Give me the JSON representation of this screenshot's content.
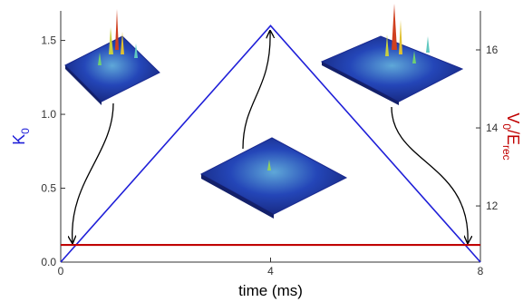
{
  "chart_data": {
    "type": "line",
    "xlabel": "time (ms)",
    "ylabel": {
      "main": "K",
      "sub": "0"
    },
    "y2label": {
      "main": "V",
      "sub": "0",
      "mid": "/E",
      "sub2": "rec"
    },
    "ylabel_color": "#1f1fd8",
    "y2label_color": "#c00000",
    "xlim": [
      0,
      8
    ],
    "xticks": [
      0,
      4,
      8
    ],
    "ylim": [
      0,
      1.7
    ],
    "yticks": [
      {
        "value": 0,
        "label": "0.0"
      },
      0.5,
      {
        "value": 1,
        "label": "1.0"
      },
      1.5
    ],
    "y2lim": [
      10.56,
      17
    ],
    "y2ticks": [
      12,
      14,
      16
    ],
    "series": [
      {
        "color": "#1f1fd8",
        "x": [
          0,
          4,
          8
        ],
        "values": [
          0,
          1.6,
          0
        ]
      },
      {
        "color": "#c00000",
        "axis": "y2",
        "x": [
          0,
          8
        ],
        "values": [
          11,
          11
        ]
      }
    ]
  }
}
